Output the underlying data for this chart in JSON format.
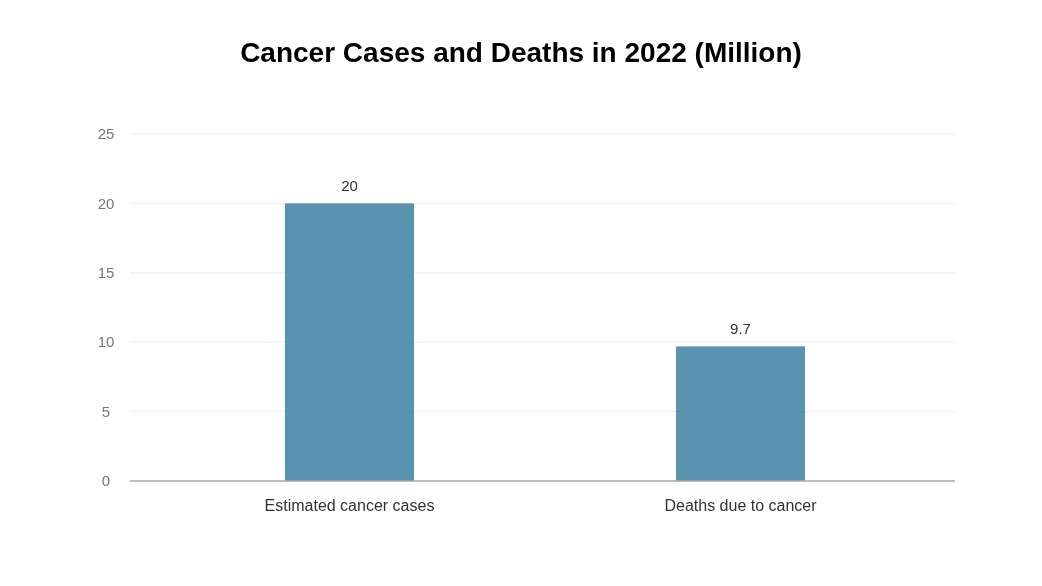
{
  "chart_data": {
    "type": "bar",
    "title": "Cancer Cases and Deaths in 2022 (Million)",
    "categories": [
      "Estimated cancer cases",
      "Deaths due to cancer"
    ],
    "values": [
      20,
      9.7
    ],
    "color": "#5a93b0",
    "ylim": [
      0,
      25
    ],
    "yticks": [
      0,
      5,
      10,
      15,
      20,
      25
    ],
    "grid": "y",
    "data_labels": true
  }
}
